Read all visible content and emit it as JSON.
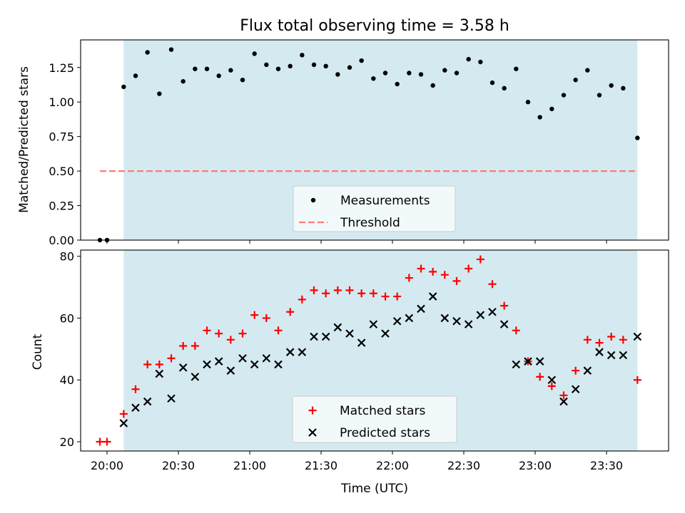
{
  "chart_data": [
    {
      "type": "scatter",
      "title": "Flux total observing time = 3.58 h",
      "xlabel": "",
      "ylabel": "Matched/Predicted stars",
      "ylim": [
        0,
        1.45
      ],
      "yticks": [
        "0.00",
        "0.25",
        "0.50",
        "0.75",
        "1.00",
        "1.25"
      ],
      "legend_position": "lower center",
      "observing_window": {
        "start": "20:07",
        "end": "23:43",
        "color": "#d4eaf0"
      },
      "series": [
        {
          "name": "Measurements",
          "marker": "dot",
          "color": "#000000",
          "points": [
            [
              "19:57",
              0.0
            ],
            [
              "20:00",
              0.0
            ],
            [
              "20:07",
              1.11
            ],
            [
              "20:12",
              1.19
            ],
            [
              "20:17",
              1.36
            ],
            [
              "20:22",
              1.06
            ],
            [
              "20:27",
              1.38
            ],
            [
              "20:32",
              1.15
            ],
            [
              "20:37",
              1.24
            ],
            [
              "20:42",
              1.24
            ],
            [
              "20:47",
              1.19
            ],
            [
              "20:52",
              1.23
            ],
            [
              "20:57",
              1.16
            ],
            [
              "21:02",
              1.35
            ],
            [
              "21:07",
              1.27
            ],
            [
              "21:12",
              1.24
            ],
            [
              "21:17",
              1.26
            ],
            [
              "21:22",
              1.34
            ],
            [
              "21:27",
              1.27
            ],
            [
              "21:32",
              1.26
            ],
            [
              "21:37",
              1.2
            ],
            [
              "21:42",
              1.25
            ],
            [
              "21:47",
              1.3
            ],
            [
              "21:52",
              1.17
            ],
            [
              "21:57",
              1.21
            ],
            [
              "22:02",
              1.13
            ],
            [
              "22:07",
              1.21
            ],
            [
              "22:12",
              1.2
            ],
            [
              "22:17",
              1.12
            ],
            [
              "22:22",
              1.23
            ],
            [
              "22:27",
              1.21
            ],
            [
              "22:32",
              1.31
            ],
            [
              "22:37",
              1.29
            ],
            [
              "22:42",
              1.14
            ],
            [
              "22:47",
              1.1
            ],
            [
              "22:52",
              1.24
            ],
            [
              "22:57",
              1.0
            ],
            [
              "23:02",
              0.89
            ],
            [
              "23:07",
              0.95
            ],
            [
              "23:12",
              1.05
            ],
            [
              "23:17",
              1.16
            ],
            [
              "23:22",
              1.23
            ],
            [
              "23:27",
              1.05
            ],
            [
              "23:32",
              1.12
            ],
            [
              "23:37",
              1.1
            ],
            [
              "23:43",
              0.74
            ]
          ]
        },
        {
          "name": "Threshold",
          "marker": "dashed-line",
          "color": "#ff7a7a",
          "points": [
            [
              "19:57",
              0.5
            ],
            [
              "23:43",
              0.5
            ]
          ]
        }
      ]
    },
    {
      "type": "scatter",
      "title": "",
      "xlabel": "Time (UTC)",
      "ylabel": "Count",
      "ylim": [
        17,
        82
      ],
      "yticks": [
        "20",
        "40",
        "60",
        "80"
      ],
      "xticks": [
        "20:00",
        "20:30",
        "21:00",
        "21:30",
        "22:00",
        "22:30",
        "23:00",
        "23:30"
      ],
      "legend_position": "lower center",
      "series": [
        {
          "name": "Matched stars",
          "marker": "plus",
          "color": "#ff0000",
          "points": [
            [
              "19:57",
              20
            ],
            [
              "20:00",
              20
            ],
            [
              "20:07",
              29
            ],
            [
              "20:12",
              37
            ],
            [
              "20:17",
              45
            ],
            [
              "20:22",
              45
            ],
            [
              "20:27",
              47
            ],
            [
              "20:32",
              51
            ],
            [
              "20:37",
              51
            ],
            [
              "20:42",
              56
            ],
            [
              "20:47",
              55
            ],
            [
              "20:52",
              53
            ],
            [
              "20:57",
              55
            ],
            [
              "21:02",
              61
            ],
            [
              "21:07",
              60
            ],
            [
              "21:12",
              56
            ],
            [
              "21:17",
              62
            ],
            [
              "21:22",
              66
            ],
            [
              "21:27",
              69
            ],
            [
              "21:32",
              68
            ],
            [
              "21:37",
              69
            ],
            [
              "21:42",
              69
            ],
            [
              "21:47",
              68
            ],
            [
              "21:52",
              68
            ],
            [
              "21:57",
              67
            ],
            [
              "22:02",
              67
            ],
            [
              "22:07",
              73
            ],
            [
              "22:12",
              76
            ],
            [
              "22:17",
              75
            ],
            [
              "22:22",
              74
            ],
            [
              "22:27",
              72
            ],
            [
              "22:32",
              76
            ],
            [
              "22:37",
              79
            ],
            [
              "22:42",
              71
            ],
            [
              "22:47",
              64
            ],
            [
              "22:52",
              56
            ],
            [
              "22:57",
              46
            ],
            [
              "23:02",
              41
            ],
            [
              "23:07",
              38
            ],
            [
              "23:12",
              35
            ],
            [
              "23:17",
              43
            ],
            [
              "23:22",
              53
            ],
            [
              "23:27",
              52
            ],
            [
              "23:32",
              54
            ],
            [
              "23:37",
              53
            ],
            [
              "23:43",
              40
            ]
          ]
        },
        {
          "name": "Predicted stars",
          "marker": "x",
          "color": "#000000",
          "points": [
            [
              "20:07",
              26
            ],
            [
              "20:12",
              31
            ],
            [
              "20:17",
              33
            ],
            [
              "20:22",
              42
            ],
            [
              "20:27",
              34
            ],
            [
              "20:32",
              44
            ],
            [
              "20:37",
              41
            ],
            [
              "20:42",
              45
            ],
            [
              "20:47",
              46
            ],
            [
              "20:52",
              43
            ],
            [
              "20:57",
              47
            ],
            [
              "21:02",
              45
            ],
            [
              "21:07",
              47
            ],
            [
              "21:12",
              45
            ],
            [
              "21:17",
              49
            ],
            [
              "21:22",
              49
            ],
            [
              "21:27",
              54
            ],
            [
              "21:32",
              54
            ],
            [
              "21:37",
              57
            ],
            [
              "21:42",
              55
            ],
            [
              "21:47",
              52
            ],
            [
              "21:52",
              58
            ],
            [
              "21:57",
              55
            ],
            [
              "22:02",
              59
            ],
            [
              "22:07",
              60
            ],
            [
              "22:12",
              63
            ],
            [
              "22:17",
              67
            ],
            [
              "22:22",
              60
            ],
            [
              "22:27",
              59
            ],
            [
              "22:32",
              58
            ],
            [
              "22:37",
              61
            ],
            [
              "22:42",
              62
            ],
            [
              "22:47",
              58
            ],
            [
              "22:52",
              45
            ],
            [
              "22:57",
              46
            ],
            [
              "23:02",
              46
            ],
            [
              "23:07",
              40
            ],
            [
              "23:12",
              33
            ],
            [
              "23:17",
              37
            ],
            [
              "23:22",
              43
            ],
            [
              "23:27",
              49
            ],
            [
              "23:32",
              48
            ],
            [
              "23:37",
              48
            ],
            [
              "23:43",
              54
            ]
          ]
        }
      ]
    }
  ]
}
